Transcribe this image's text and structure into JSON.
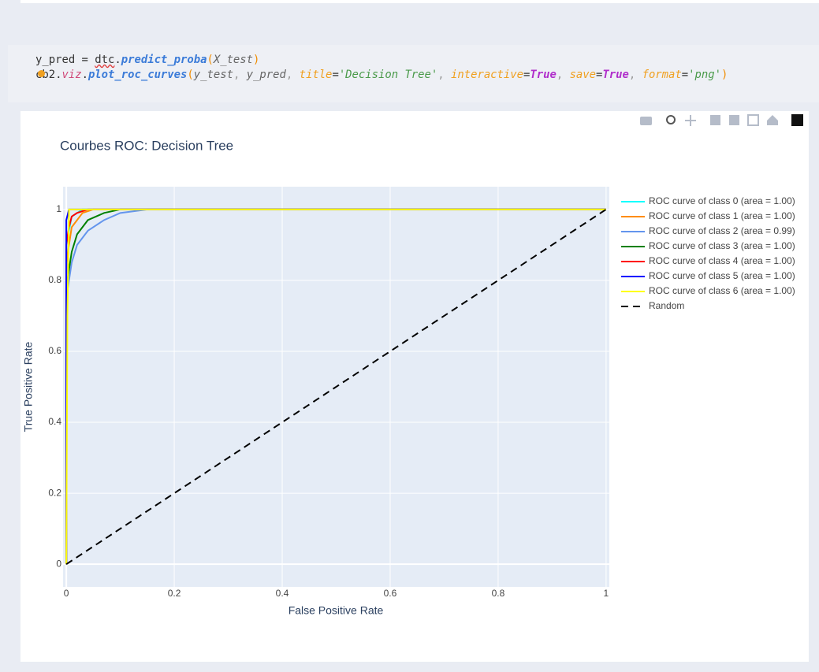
{
  "code": {
    "lines": [
      [
        "y_pred",
        " = ",
        "dtc",
        ".",
        "predict_proba",
        "(",
        "X_test",
        ")"
      ],
      [
        "cb2",
        ".",
        "viz",
        ".",
        "plot_roc_curves",
        "(",
        "y_test",
        ", ",
        "y_pred",
        ", ",
        "title",
        "=",
        "'Decision Tree'",
        ", ",
        "interactive",
        "=",
        "True",
        ", ",
        "save",
        "=",
        "True",
        ", ",
        "format",
        "=",
        "'png'",
        ")"
      ]
    ]
  },
  "chart_data": {
    "type": "line",
    "title": "Courbes ROC: Decision Tree",
    "x_label": "False Positive Rate",
    "y_label": "True Positive Rate",
    "xlim": [
      -0.006,
      1.006
    ],
    "ylim": [
      -0.064,
      1.064
    ],
    "xticks": [
      0,
      0.2,
      0.4,
      0.6,
      0.8,
      1
    ],
    "yticks": [
      0,
      0.2,
      0.4,
      0.6,
      0.8,
      1
    ],
    "grid": true,
    "legend": "outside-right",
    "series": [
      {
        "name": "ROC curve of class 0 (area = 1.00)",
        "color": "#00ffff",
        "x": [
          0,
          0,
          0.01,
          0.03,
          1
        ],
        "values": [
          0,
          0.9,
          0.98,
          1,
          1
        ]
      },
      {
        "name": "ROC curve of class 1 (area = 1.00)",
        "color": "#ff8c00",
        "x": [
          0,
          0,
          0.01,
          0.03,
          0.05,
          1
        ],
        "values": [
          0,
          0.85,
          0.95,
          0.99,
          1,
          1
        ]
      },
      {
        "name": "ROC curve of class 2 (area = 0.99)",
        "color": "#6495ed",
        "x": [
          0,
          0,
          0.01,
          0.02,
          0.04,
          0.07,
          0.1,
          0.15,
          1
        ],
        "values": [
          0,
          0.75,
          0.85,
          0.9,
          0.94,
          0.97,
          0.99,
          1,
          1
        ]
      },
      {
        "name": "ROC curve of class 3 (area = 1.00)",
        "color": "#008000",
        "x": [
          0,
          0,
          0.01,
          0.02,
          0.04,
          0.07,
          0.1,
          1
        ],
        "values": [
          0,
          0.78,
          0.88,
          0.93,
          0.97,
          0.99,
          1,
          1
        ]
      },
      {
        "name": "ROC curve of class 4 (area = 1.00)",
        "color": "#ff0000",
        "x": [
          0,
          0,
          0.005,
          0.01,
          0.02,
          0.04,
          1
        ],
        "values": [
          0,
          0.9,
          0.95,
          0.98,
          0.99,
          1,
          1
        ]
      },
      {
        "name": "ROC curve of class 5 (area = 1.00)",
        "color": "#0000ff",
        "x": [
          0,
          0,
          0.005,
          1
        ],
        "values": [
          0,
          0.97,
          1,
          1
        ]
      },
      {
        "name": "ROC curve of class 6 (area = 1.00)",
        "color": "#ffff00",
        "x": [
          0,
          0.002,
          0.005,
          1
        ],
        "values": [
          0,
          0.7,
          1,
          1
        ]
      },
      {
        "name": "Random",
        "color": "#000000",
        "dash": "dash",
        "x": [
          0,
          1
        ],
        "values": [
          0,
          1
        ]
      }
    ]
  }
}
